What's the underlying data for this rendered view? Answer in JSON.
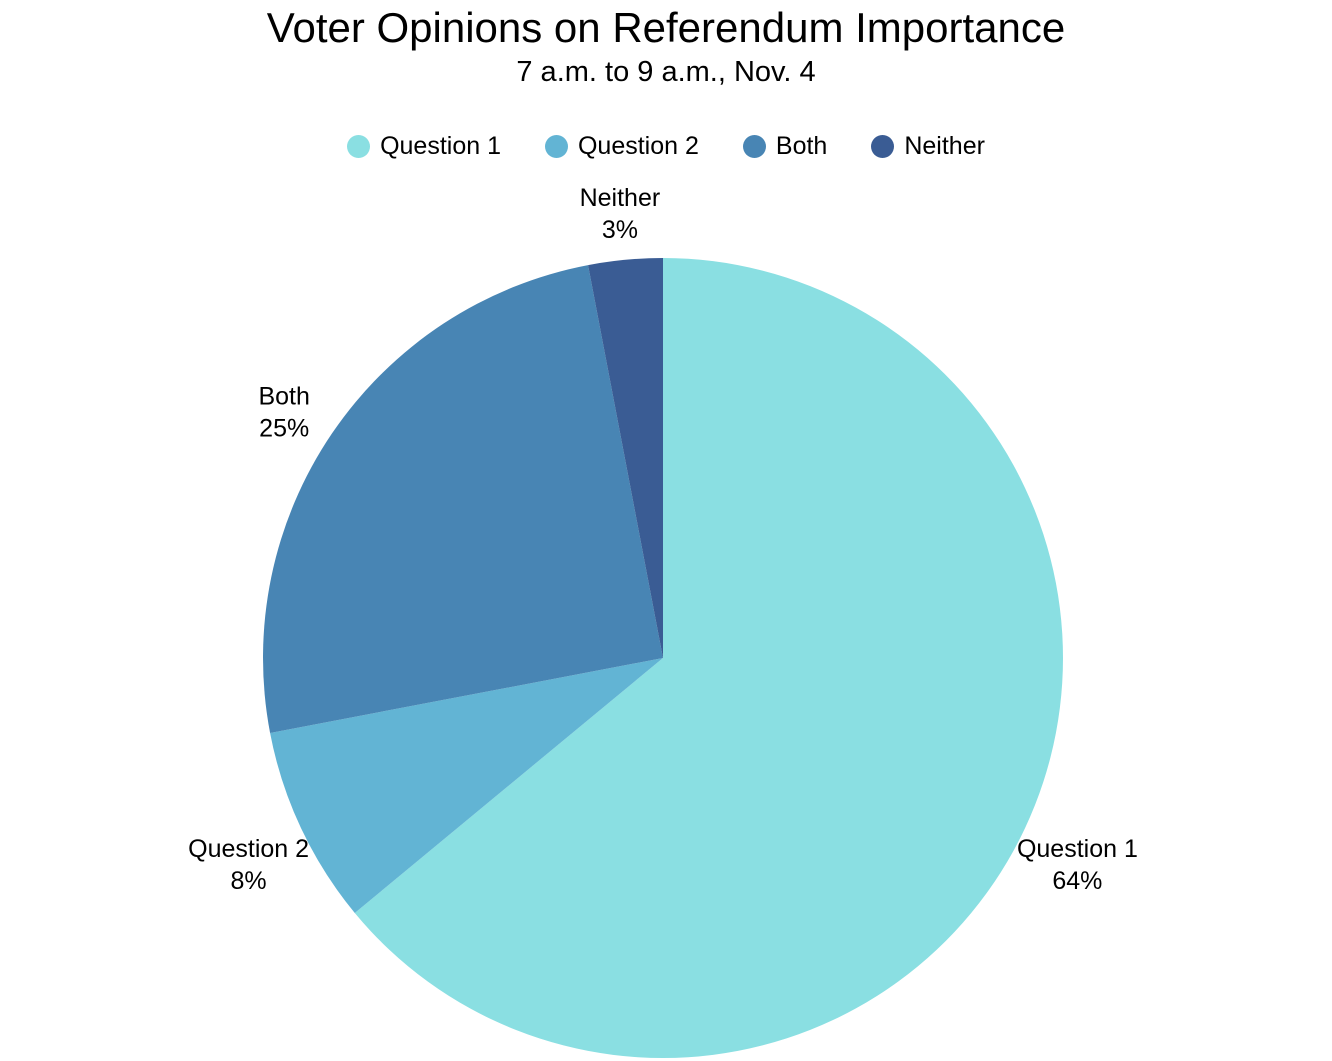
{
  "chart_data": {
    "type": "pie",
    "title": "Voter Opinions on Referendum Importance",
    "subtitle": "7 a.m. to 9 a.m., Nov. 4",
    "labels": [
      "Question 1",
      "Question 2",
      "Both",
      "Neither"
    ],
    "values": [
      64,
      8,
      25,
      3
    ],
    "percent_labels": [
      "64%",
      "8%",
      "25%",
      "3%"
    ],
    "colors": [
      "#8ADFE2",
      "#62B4D4",
      "#4885B4",
      "#3A5C94"
    ],
    "start_angle": "12 o'clock",
    "direction": "clockwise",
    "legend_position": "top",
    "label_position": "outside",
    "background_color": "#ffffff",
    "text_color": "#000000"
  }
}
